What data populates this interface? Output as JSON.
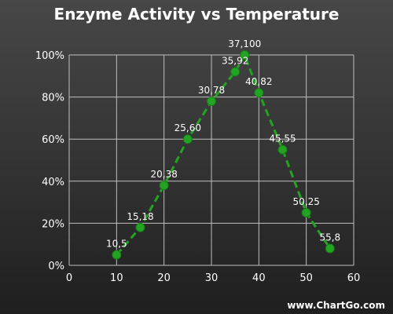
{
  "chart_data": {
    "type": "line",
    "title": "Enzyme Activity vs Temperature",
    "xlabel": "",
    "ylabel": "",
    "xlim": [
      0,
      60
    ],
    "ylim": [
      0,
      100
    ],
    "x_ticks": [
      0,
      10,
      20,
      30,
      40,
      50,
      60
    ],
    "y_ticks": [
      0,
      20,
      40,
      60,
      80,
      100
    ],
    "x_tick_labels": [
      "0",
      "10",
      "20",
      "30",
      "40",
      "50",
      "60"
    ],
    "y_tick_labels": [
      "0%",
      "20%",
      "40%",
      "60%",
      "80%",
      "100%"
    ],
    "grid": true,
    "legend": "none",
    "series": [
      {
        "line_style": "dashed",
        "color": "#22a322",
        "points": [
          {
            "x": 10,
            "y": 5,
            "label": "10,5"
          },
          {
            "x": 15,
            "y": 18,
            "label": "15,18"
          },
          {
            "x": 20,
            "y": 38,
            "label": "20,38"
          },
          {
            "x": 25,
            "y": 60,
            "label": "25,60"
          },
          {
            "x": 30,
            "y": 78,
            "label": "30,78"
          },
          {
            "x": 35,
            "y": 92,
            "label": "35,92"
          },
          {
            "x": 37,
            "y": 100,
            "label": "37,100"
          },
          {
            "x": 40,
            "y": 82,
            "label": "40,82"
          },
          {
            "x": 45,
            "y": 55,
            "label": "45,55"
          },
          {
            "x": 50,
            "y": 25,
            "label": "50,25"
          },
          {
            "x": 55,
            "y": 8,
            "label": "55,8"
          }
        ]
      }
    ]
  },
  "watermark": "www.ChartGo.com",
  "colors": {
    "background_top": "#474747",
    "background_bottom": "#1f1f1f",
    "grid": "#bfbfbf",
    "text": "#ffffff",
    "series": "#22a322"
  }
}
